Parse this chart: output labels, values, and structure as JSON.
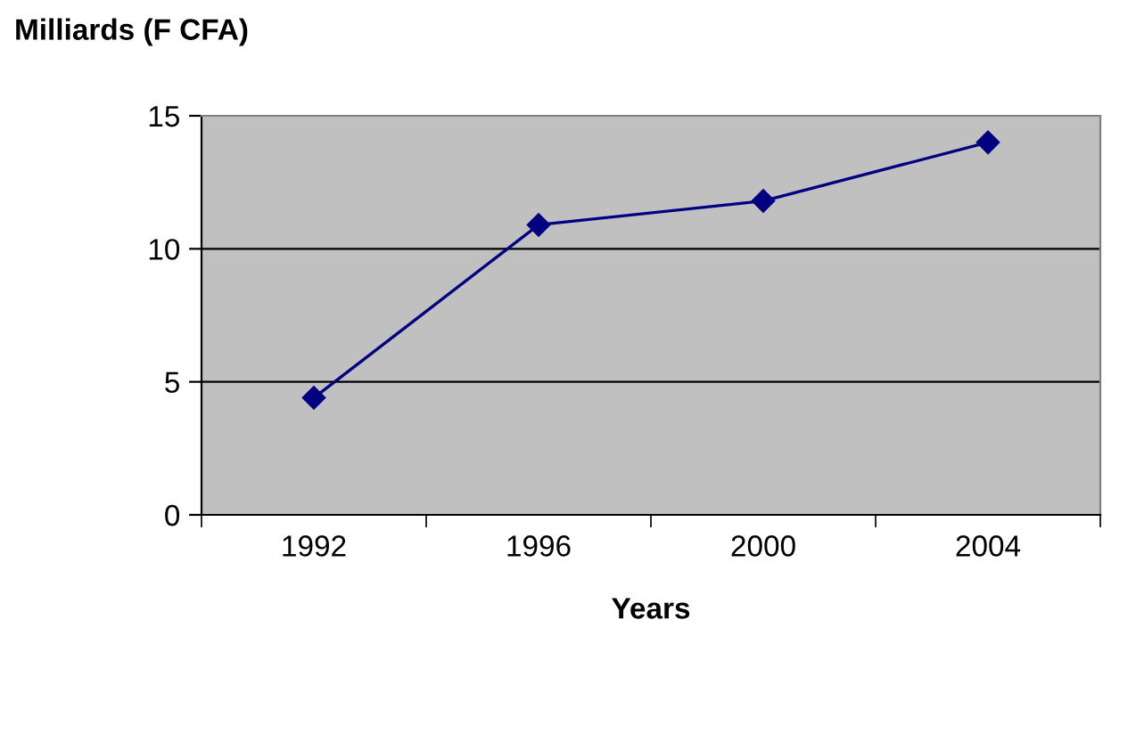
{
  "chart_data": {
    "type": "line",
    "ylabel": "Milliards (F CFA)",
    "xlabel": "Years",
    "categories": [
      "1992",
      "1996",
      "2000",
      "2004"
    ],
    "series": [
      {
        "color": "#000080",
        "values": [
          4.4,
          10.9,
          11.8,
          14.0
        ]
      }
    ],
    "ylim": [
      0,
      15
    ],
    "yticks": [
      0,
      5,
      10,
      15
    ],
    "grid": "y",
    "marker": "diamond",
    "line_style": "solid"
  }
}
